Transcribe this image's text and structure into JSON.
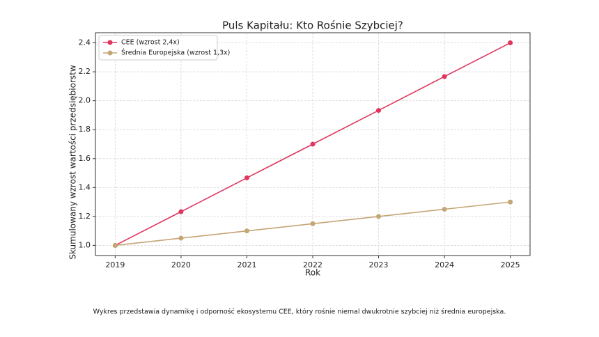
{
  "chart_data": {
    "type": "line",
    "title": "Puls Kapitału: Kto Rośnie Szybciej?",
    "x_label": "Rok",
    "y_label": "Skumulowany wzrost wartości przedsiębiorstw",
    "caption": "Wykres przedstawia dynamikę i odporność ekosystemu CEE, który rośnie niemal dwukrotnie szybciej niż średnia europejska.",
    "x": [
      2019,
      2020,
      2021,
      2022,
      2023,
      2024,
      2025
    ],
    "series": [
      {
        "name": "CEE (wzrost 2,4x)",
        "color": "#e0365e",
        "values": [
          1.0,
          1.233,
          1.467,
          1.7,
          1.933,
          2.167,
          2.4
        ]
      },
      {
        "name": "Średnia Europejska (wzrost 1,3x)",
        "color": "#c4a574",
        "values": [
          1.0,
          1.05,
          1.1,
          1.15,
          1.2,
          1.25,
          1.3
        ]
      }
    ],
    "xlim": [
      2018.7,
      2025.3
    ],
    "xticks": [
      2019,
      2020,
      2021,
      2022,
      2023,
      2024,
      2025
    ],
    "ylim": [
      0.93,
      2.47
    ],
    "yticks": [
      {
        "value": 1,
        "label": "1.0"
      },
      1.2,
      1.4,
      1.6,
      1.8,
      {
        "value": 2,
        "label": "2.0"
      },
      2.2,
      2.4
    ],
    "grid": true,
    "legend": "upper-left"
  }
}
